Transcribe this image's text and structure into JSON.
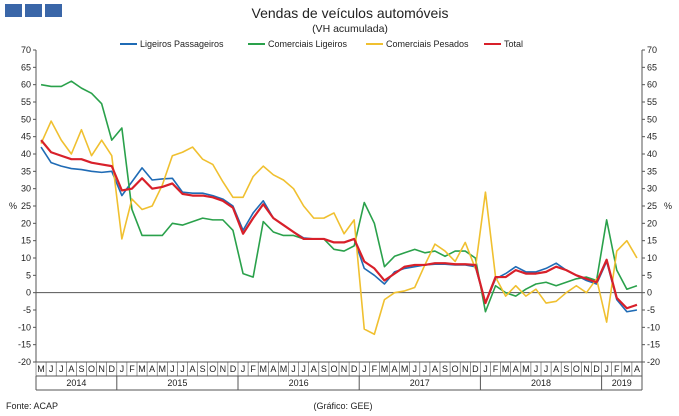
{
  "header": {
    "title": "Vendas de veículos automóveis",
    "subtitle": "(VH acumulada)"
  },
  "footer": {
    "source": "Fonte: ACAP",
    "credit": "(Gráfico: GEE)"
  },
  "colors": {
    "ligeiros_passageiros": "#1f6bb5",
    "comerciais_ligeiros": "#2aa14b",
    "comerciais_pesados": "#f0c030",
    "total": "#d8202a",
    "axis": "#555555",
    "logo": "#3a66a8"
  },
  "chart_data": {
    "type": "line",
    "title": "Vendas de veículos automóveis",
    "subtitle": "(VH acumulada)",
    "ylabel_left": "%",
    "ylabel_right": "%",
    "ylim": [
      -20,
      70
    ],
    "yticks": [
      70,
      65,
      60,
      55,
      50,
      45,
      40,
      35,
      30,
      25,
      20,
      15,
      10,
      5,
      0,
      -5,
      -10,
      -15,
      -20
    ],
    "grid": false,
    "legend": "top",
    "months": [
      "M",
      "J",
      "J",
      "A",
      "S",
      "O",
      "N",
      "D",
      "J",
      "F",
      "M",
      "A",
      "M",
      "J",
      "J",
      "A",
      "S",
      "O",
      "N",
      "D",
      "J",
      "F",
      "M",
      "A",
      "M",
      "J",
      "J",
      "A",
      "S",
      "O",
      "N",
      "D",
      "J",
      "F",
      "M",
      "A",
      "M",
      "J",
      "J",
      "A",
      "S",
      "O",
      "N",
      "D",
      "J",
      "F",
      "M",
      "A",
      "M",
      "J",
      "J",
      "A",
      "S",
      "O",
      "N",
      "D",
      "J",
      "F",
      "M",
      "A"
    ],
    "years": [
      {
        "label": "2014",
        "start": 0,
        "end": 7
      },
      {
        "label": "2015",
        "start": 8,
        "end": 19
      },
      {
        "label": "2016",
        "start": 20,
        "end": 31
      },
      {
        "label": "2017",
        "start": 32,
        "end": 43
      },
      {
        "label": "2018",
        "start": 44,
        "end": 55
      },
      {
        "label": "2019",
        "start": 56,
        "end": 59
      }
    ],
    "series": [
      {
        "name": "Ligeiros Passageiros",
        "color": "#1f6bb5",
        "values": [
          42,
          37.5,
          36.5,
          35.8,
          35.5,
          35,
          34.7,
          35,
          28,
          32,
          36,
          32.5,
          32.8,
          33,
          29,
          28.7,
          28.7,
          28,
          27,
          25,
          18,
          23,
          26.5,
          21.5,
          19.5,
          17.5,
          15.8,
          15.5,
          15.5,
          14.5,
          14.5,
          15.5,
          7,
          5,
          2.5,
          6,
          7,
          7.5,
          8,
          8.2,
          8.2,
          8,
          8,
          7.5,
          -3,
          4,
          5.5,
          7.5,
          6,
          6,
          7,
          8.5,
          6.5,
          5,
          3.5,
          2.5,
          9,
          -2,
          -5.5,
          -5
        ]
      },
      {
        "name": "Comerciais Ligeiros",
        "color": "#2aa14b",
        "values": [
          60,
          59.5,
          59.5,
          61,
          59,
          57.5,
          54.5,
          44,
          47.5,
          24,
          16.5,
          16.5,
          16.5,
          20,
          19.5,
          20.5,
          21.5,
          21,
          21,
          18,
          5.5,
          4.5,
          20.5,
          17.5,
          16.5,
          16.5,
          15.5,
          15.5,
          15.5,
          12.5,
          12,
          13.5,
          26,
          20,
          7.5,
          10.5,
          11.5,
          12.5,
          11.5,
          12,
          10.5,
          12,
          12,
          10,
          -5.5,
          2,
          0,
          -1,
          1,
          2.5,
          3,
          2,
          3,
          4,
          4.5,
          3.5,
          21,
          6.5,
          1,
          2
        ]
      },
      {
        "name": "Comerciais Pesados",
        "color": "#f0c030",
        "values": [
          43,
          49.5,
          44,
          40,
          47,
          39.5,
          44,
          39.5,
          15.5,
          27,
          24,
          25,
          31,
          39.5,
          40.5,
          42,
          38.5,
          37,
          32,
          27.5,
          27.5,
          33.5,
          36.5,
          34,
          32.5,
          30,
          25,
          21.5,
          21.5,
          23,
          17,
          21,
          -10.5,
          -12,
          -2,
          0,
          0.5,
          1.5,
          8,
          14,
          12,
          9,
          14.5,
          7,
          29,
          4.5,
          -1,
          2,
          -1,
          1,
          -3,
          -2.5,
          0,
          2,
          0,
          4,
          -8.5,
          12,
          15,
          10
        ]
      },
      {
        "name": "Total",
        "color": "#d8202a",
        "values": [
          44,
          40.5,
          39.5,
          38.5,
          38.5,
          37.5,
          37,
          36.5,
          29.5,
          30,
          33,
          30,
          30.5,
          31.5,
          28.5,
          28,
          28,
          27.5,
          26.5,
          24.5,
          17,
          21.5,
          25.5,
          21.5,
          19.5,
          17.5,
          15.5,
          15.5,
          15.5,
          14.5,
          14.5,
          15.5,
          9,
          7,
          3.5,
          5.5,
          7.5,
          8,
          8,
          8.5,
          8.5,
          8.2,
          8.2,
          8,
          -3,
          4.5,
          4.5,
          6.5,
          5.5,
          5.5,
          6,
          7.5,
          6.5,
          5,
          4,
          3,
          9.5,
          -1.5,
          -4.5,
          -3.5
        ]
      }
    ]
  }
}
